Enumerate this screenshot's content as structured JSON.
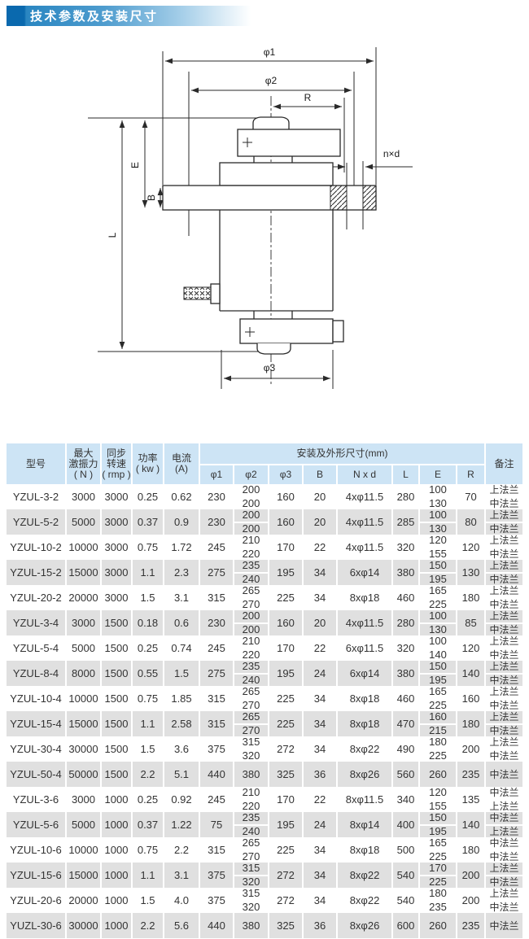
{
  "title": "技术参数及安装尺寸",
  "drawing": {
    "labels": {
      "phi1": "φ1",
      "phi2": "φ2",
      "phi3": "φ3",
      "r": "R",
      "nxd": "n×d",
      "e": "E",
      "b": "B",
      "l": "L"
    }
  },
  "table": {
    "headers": {
      "model": "型号",
      "force": [
        "最大",
        "激振力",
        "( N )"
      ],
      "speed": [
        "同步",
        "转速",
        "( rmp )"
      ],
      "power": [
        "功率",
        "( kw )"
      ],
      "current": [
        "电流",
        "(A)"
      ],
      "dims_group": "安装及外形尺寸(mm)",
      "dims": [
        "φ1",
        "φ2",
        "φ3",
        "B",
        "N x d",
        "L",
        "E",
        "R"
      ],
      "remark": "备注"
    },
    "rows": [
      {
        "model": "YZUL-3-2",
        "force": "3000",
        "speed": "3000",
        "power": "0.25",
        "current": "0.62",
        "p1": "230",
        "p2": [
          "200",
          "200"
        ],
        "p3": "160",
        "b": "20",
        "nxd": "4xφ11.5",
        "l": "280",
        "e": [
          "100",
          "130"
        ],
        "r": "70",
        "remark": [
          "上法兰",
          "中法兰"
        ]
      },
      {
        "model": "YZUL-5-2",
        "force": "5000",
        "speed": "3000",
        "power": "0.37",
        "current": "0.9",
        "p1": "230",
        "p2": [
          "200",
          "200"
        ],
        "p3": "160",
        "b": "20",
        "nxd": "4xφ11.5",
        "l": "285",
        "e": [
          "100",
          "130"
        ],
        "r": "80",
        "remark": [
          "上法兰",
          "中法兰"
        ]
      },
      {
        "model": "YZUL-10-2",
        "force": "10000",
        "speed": "3000",
        "power": "0.75",
        "current": "1.72",
        "p1": "245",
        "p2": [
          "210",
          "220"
        ],
        "p3": "170",
        "b": "22",
        "nxd": "4xφ11.5",
        "l": "320",
        "e": [
          "120",
          "155"
        ],
        "r": "120",
        "remark": [
          "上法兰",
          "中法兰"
        ]
      },
      {
        "model": "YZUL-15-2",
        "force": "15000",
        "speed": "3000",
        "power": "1.1",
        "current": "2.3",
        "p1": "275",
        "p2": [
          "235",
          "240"
        ],
        "p3": "195",
        "b": "34",
        "nxd": "6xφ14",
        "l": "380",
        "e": [
          "150",
          "195"
        ],
        "r": "130",
        "remark": [
          "上法兰",
          "中法兰"
        ]
      },
      {
        "model": "YZUL-20-2",
        "force": "20000",
        "speed": "3000",
        "power": "1.5",
        "current": "3.1",
        "p1": "315",
        "p2": [
          "265",
          "270"
        ],
        "p3": "225",
        "b": "34",
        "nxd": "8xφ18",
        "l": "460",
        "e": [
          "165",
          "225"
        ],
        "r": "180",
        "remark": [
          "上法兰",
          "中法兰"
        ]
      },
      {
        "model": "YZUL-3-4",
        "force": "3000",
        "speed": "1500",
        "power": "0.18",
        "current": "0.6",
        "p1": "230",
        "p2": [
          "200",
          "200"
        ],
        "p3": "160",
        "b": "20",
        "nxd": "4xφ11.5",
        "l": "280",
        "e": [
          "100",
          "130"
        ],
        "r": "85",
        "remark": [
          "上法兰",
          "中法兰"
        ]
      },
      {
        "model": "YZUL-5-4",
        "force": "5000",
        "speed": "1500",
        "power": "0.25",
        "current": "0.74",
        "p1": "245",
        "p2": [
          "210",
          "220"
        ],
        "p3": "170",
        "b": "22",
        "nxd": "6xφ11.5",
        "l": "320",
        "e": [
          "100",
          "140"
        ],
        "r": "120",
        "remark": [
          "上法兰",
          "中法兰"
        ]
      },
      {
        "model": "YZUL-8-4",
        "force": "8000",
        "speed": "1500",
        "power": "0.55",
        "current": "1.5",
        "p1": "275",
        "p2": [
          "235",
          "240"
        ],
        "p3": "195",
        "b": "24",
        "nxd": "6xφ14",
        "l": "380",
        "e": [
          "150",
          "195"
        ],
        "r": "140",
        "remark": [
          "上法兰",
          "中法兰"
        ]
      },
      {
        "model": "YZUL-10-4",
        "force": "10000",
        "speed": "1500",
        "power": "0.75",
        "current": "1.85",
        "p1": "315",
        "p2": [
          "265",
          "270"
        ],
        "p3": "225",
        "b": "34",
        "nxd": "8xφ18",
        "l": "460",
        "e": [
          "165",
          "225"
        ],
        "r": "160",
        "remark": [
          "上法兰",
          "中法兰"
        ]
      },
      {
        "model": "YZUL-15-4",
        "force": "15000",
        "speed": "1500",
        "power": "1.1",
        "current": "2.58",
        "p1": "315",
        "p2": [
          "265",
          "270"
        ],
        "p3": "225",
        "b": "34",
        "nxd": "8xφ18",
        "l": "470",
        "e": [
          "160",
          "215"
        ],
        "r": "180",
        "remark": [
          "上法兰",
          "中法兰"
        ]
      },
      {
        "model": "YZUL-30-4",
        "force": "30000",
        "speed": "1500",
        "power": "1.5",
        "current": "3.6",
        "p1": "375",
        "p2": [
          "315",
          "320"
        ],
        "p3": "272",
        "b": "34",
        "nxd": "8xφ22",
        "l": "490",
        "e": [
          "180",
          "225"
        ],
        "r": "200",
        "remark": [
          "上法兰",
          "中法兰"
        ]
      },
      {
        "model": "YZUL-50-4",
        "force": "50000",
        "speed": "1500",
        "power": "2.2",
        "current": "5.1",
        "p1": "440",
        "p2": [
          "380"
        ],
        "p3": "325",
        "b": "36",
        "nxd": "8xφ26",
        "l": "560",
        "e": [
          "260"
        ],
        "r": "235",
        "remark": [
          "中法兰"
        ]
      },
      {
        "model": "YZUL-3-6",
        "force": "3000",
        "speed": "1000",
        "power": "0.25",
        "current": "0.92",
        "p1": "245",
        "p2": [
          "210",
          "220"
        ],
        "p3": "170",
        "b": "22",
        "nxd": "8xφ11.5",
        "l": "340",
        "e": [
          "120",
          "155"
        ],
        "r": "135",
        "remark": [
          "中法兰",
          "上法兰"
        ]
      },
      {
        "model": "YZUL-5-6",
        "force": "5000",
        "speed": "1000",
        "power": "0.37",
        "current": "1.22",
        "p1": "75",
        "p2": [
          "235",
          "240"
        ],
        "p3": "195",
        "b": "24",
        "nxd": "8xφ14",
        "l": "400",
        "e": [
          "150",
          "195"
        ],
        "r": "140",
        "remark": [
          "中法兰",
          "上法兰"
        ]
      },
      {
        "model": "YZUL-10-6",
        "force": "10000",
        "speed": "1000",
        "power": "0.75",
        "current": "2.2",
        "p1": "315",
        "p2": [
          "265",
          "270"
        ],
        "p3": "225",
        "b": "34",
        "nxd": "8xφ18",
        "l": "500",
        "e": [
          "165",
          "225"
        ],
        "r": "180",
        "remark": [
          "中法兰",
          "中法兰"
        ]
      },
      {
        "model": "YZUL-15-6",
        "force": "15000",
        "speed": "1000",
        "power": "1.1",
        "current": "3.1",
        "p1": "375",
        "p2": [
          "315",
          "320"
        ],
        "p3": "272",
        "b": "34",
        "nxd": "8xφ22",
        "l": "540",
        "e": [
          "170",
          "225"
        ],
        "r": "200",
        "remark": [
          "上法兰",
          "中法兰"
        ]
      },
      {
        "model": "YZUL-20-6",
        "force": "20000",
        "speed": "1000",
        "power": "1.5",
        "current": "4.0",
        "p1": "375",
        "p2": [
          "315",
          "320"
        ],
        "p3": "272",
        "b": "34",
        "nxd": "8xφ22",
        "l": "540",
        "e": [
          "180",
          "235"
        ],
        "r": "200",
        "remark": [
          "上法兰",
          "中法兰"
        ]
      },
      {
        "model": "YUZL-30-6",
        "force": "30000",
        "speed": "1000",
        "power": "2.2",
        "current": "5.6",
        "p1": "440",
        "p2": [
          "380"
        ],
        "p3": "325",
        "b": "36",
        "nxd": "8xφ26",
        "l": "600",
        "e": [
          "260"
        ],
        "r": "235",
        "remark": [
          "中法兰"
        ]
      }
    ]
  }
}
